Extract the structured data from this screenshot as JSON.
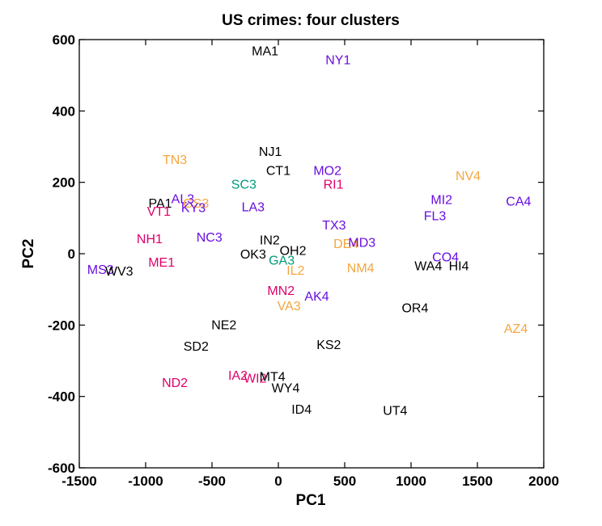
{
  "chart_data": {
    "type": "scatter",
    "title": "US crimes: four clusters",
    "xlabel": "PC1",
    "ylabel": "PC2",
    "xlim": [
      -1500,
      2000
    ],
    "ylim": [
      -600,
      600
    ],
    "xticks": [
      -1500,
      -1000,
      -500,
      0,
      500,
      1000,
      1500,
      2000
    ],
    "yticks": [
      -600,
      -400,
      -200,
      0,
      200,
      400,
      600
    ],
    "xtick_labels": [
      "-1500",
      "-1000",
      "-500",
      "0",
      "500",
      "1000",
      "1500",
      "2000"
    ],
    "ytick_labels": [
      "-600",
      "-400",
      "-200",
      "0",
      "200",
      "400",
      "600"
    ],
    "grid": false,
    "cluster_colors": {
      "1": "#e0006a",
      "2": "#6a0ee0",
      "3": "#009a7a",
      "4": "#f4a640",
      "black": "#000000"
    },
    "points": [
      {
        "label": "MA1",
        "x": -100,
        "y": 570,
        "color": "black"
      },
      {
        "label": "NY1",
        "x": 450,
        "y": 545,
        "color": "2"
      },
      {
        "label": "NJ1",
        "x": -60,
        "y": 287,
        "color": "black"
      },
      {
        "label": "TN3",
        "x": -780,
        "y": 265,
        "color": "4"
      },
      {
        "label": "CT1",
        "x": 0,
        "y": 234,
        "color": "black"
      },
      {
        "label": "MO2",
        "x": 370,
        "y": 234,
        "color": "2"
      },
      {
        "label": "NV4",
        "x": 1430,
        "y": 220,
        "color": "4"
      },
      {
        "label": "SC3",
        "x": -260,
        "y": 196,
        "color": "3"
      },
      {
        "label": "RI1",
        "x": 415,
        "y": 196,
        "color": "1"
      },
      {
        "label": "MI2",
        "x": 1230,
        "y": 153,
        "color": "2"
      },
      {
        "label": "CA4",
        "x": 1810,
        "y": 148,
        "color": "2"
      },
      {
        "label": "AL3",
        "x": -720,
        "y": 155,
        "color": "2"
      },
      {
        "label": "GS3",
        "x": -620,
        "y": 143,
        "color": "4"
      },
      {
        "label": "PA1",
        "x": -890,
        "y": 143,
        "color": "black"
      },
      {
        "label": "KY3",
        "x": -640,
        "y": 130,
        "color": "2"
      },
      {
        "label": "VT1",
        "x": -900,
        "y": 120,
        "color": "1"
      },
      {
        "label": "LA3",
        "x": -190,
        "y": 133,
        "color": "2"
      },
      {
        "label": "FL3",
        "x": 1180,
        "y": 108,
        "color": "2"
      },
      {
        "label": "TX3",
        "x": 420,
        "y": 81,
        "color": "2"
      },
      {
        "label": "NH1",
        "x": -970,
        "y": 43,
        "color": "1"
      },
      {
        "label": "NC3",
        "x": -520,
        "y": 48,
        "color": "2"
      },
      {
        "label": "IN2",
        "x": -65,
        "y": 40,
        "color": "black"
      },
      {
        "label": "DE4",
        "x": 510,
        "y": 30,
        "color": "4"
      },
      {
        "label": "MD3",
        "x": 630,
        "y": 33,
        "color": "2"
      },
      {
        "label": "OH2",
        "x": 110,
        "y": 10,
        "color": "black"
      },
      {
        "label": "OK3",
        "x": -190,
        "y": 0,
        "color": "black"
      },
      {
        "label": "GA3",
        "x": 25,
        "y": -17,
        "color": "3"
      },
      {
        "label": "CO4",
        "x": 1260,
        "y": -8,
        "color": "2"
      },
      {
        "label": "ME1",
        "x": -880,
        "y": -23,
        "color": "1"
      },
      {
        "label": "MS3",
        "x": -1340,
        "y": -43,
        "color": "2"
      },
      {
        "label": "WV3",
        "x": -1200,
        "y": -48,
        "color": "black"
      },
      {
        "label": "WA4",
        "x": 1130,
        "y": -33,
        "color": "black"
      },
      {
        "label": "HI4",
        "x": 1360,
        "y": -33,
        "color": "black"
      },
      {
        "label": "NM4",
        "x": 620,
        "y": -38,
        "color": "4"
      },
      {
        "label": "IL2",
        "x": 130,
        "y": -45,
        "color": "4"
      },
      {
        "label": "MN2",
        "x": 20,
        "y": -102,
        "color": "1"
      },
      {
        "label": "AK4",
        "x": 290,
        "y": -118,
        "color": "2"
      },
      {
        "label": "VA3",
        "x": 80,
        "y": -145,
        "color": "4"
      },
      {
        "label": "OR4",
        "x": 1030,
        "y": -150,
        "color": "black"
      },
      {
        "label": "NE2",
        "x": -410,
        "y": -198,
        "color": "black"
      },
      {
        "label": "AZ4",
        "x": 1790,
        "y": -208,
        "color": "4"
      },
      {
        "label": "SD2",
        "x": -620,
        "y": -258,
        "color": "black"
      },
      {
        "label": "KS2",
        "x": 380,
        "y": -254,
        "color": "black"
      },
      {
        "label": "IA2",
        "x": -305,
        "y": -340,
        "color": "1"
      },
      {
        "label": "WI2",
        "x": -175,
        "y": -348,
        "color": "1"
      },
      {
        "label": "MT4",
        "x": -45,
        "y": -343,
        "color": "black"
      },
      {
        "label": "ND2",
        "x": -780,
        "y": -360,
        "color": "1"
      },
      {
        "label": "WY4",
        "x": 55,
        "y": -375,
        "color": "black"
      },
      {
        "label": "ID4",
        "x": 175,
        "y": -435,
        "color": "black"
      },
      {
        "label": "UT4",
        "x": 880,
        "y": -438,
        "color": "black"
      }
    ]
  }
}
